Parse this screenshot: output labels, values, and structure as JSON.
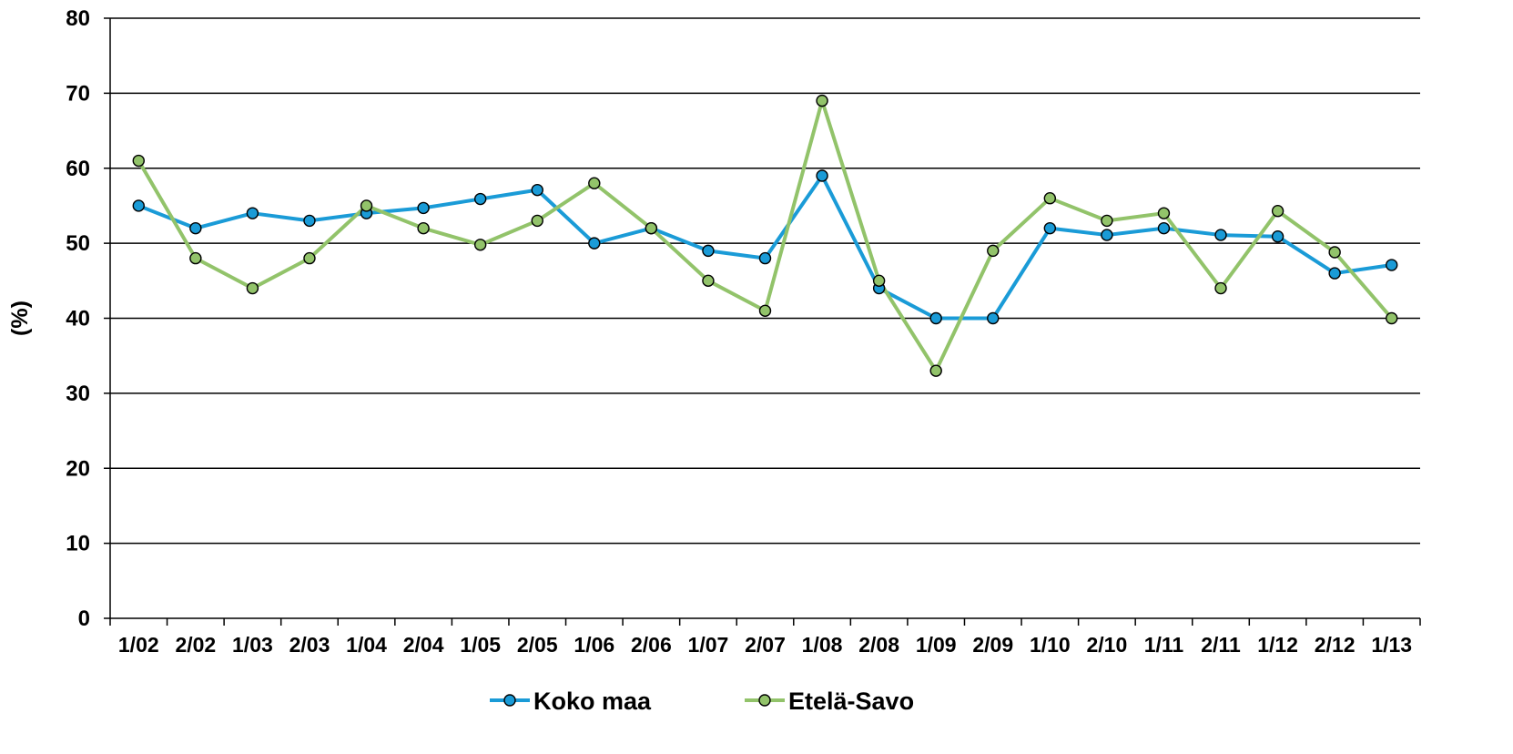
{
  "chart_data": {
    "type": "line",
    "title": "",
    "xlabel": "",
    "ylabel": "(%)",
    "ylim": [
      0,
      80
    ],
    "yticks": [
      0,
      10,
      20,
      30,
      40,
      50,
      60,
      70,
      80
    ],
    "grid": true,
    "legend_position": "bottom",
    "categories": [
      "1/02",
      "2/02",
      "1/03",
      "2/03",
      "1/04",
      "2/04",
      "1/05",
      "2/05",
      "1/06",
      "2/06",
      "1/07",
      "2/07",
      "1/08",
      "2/08",
      "1/09",
      "2/09",
      "1/10",
      "2/10",
      "1/11",
      "2/11",
      "1/12",
      "2/12",
      "1/13"
    ],
    "series": [
      {
        "name": "Koko maa",
        "color": "#1a9bd7",
        "values": [
          55,
          52,
          54,
          53,
          54,
          54.7,
          55.9,
          57.1,
          50,
          52,
          49,
          48,
          59,
          44,
          40,
          40,
          52,
          51.1,
          52,
          51.1,
          50.9,
          46,
          47.1
        ]
      },
      {
        "name": "Etelä-Savo",
        "color": "#92c36a",
        "values": [
          61,
          48,
          44,
          48,
          55,
          52,
          49.8,
          53,
          58,
          52,
          45,
          41,
          69,
          45,
          33,
          49,
          56,
          53,
          54,
          44,
          54.3,
          48.8,
          40
        ]
      }
    ]
  }
}
